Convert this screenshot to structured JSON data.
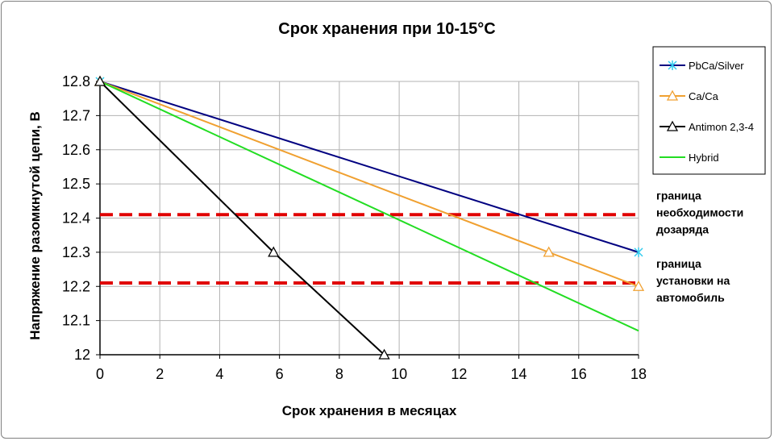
{
  "chart_data": {
    "type": "line",
    "title": "Срок хранения при 10-15°С",
    "xlabel": "Срок хранения в месяцах",
    "ylabel": "Напряжение разомкнутой цепи, В",
    "xlim": [
      0,
      18
    ],
    "ylim": [
      12,
      12.8
    ],
    "x_ticks": [
      "0",
      "2",
      "4",
      "6",
      "8",
      "10",
      "12",
      "14",
      "16",
      "18"
    ],
    "y_ticks": [
      "12",
      "12.1",
      "12.2",
      "12.3",
      "12.4",
      "12.5",
      "12.6",
      "12.7",
      "12.8"
    ],
    "grid": true,
    "legend_position": "right",
    "series": [
      {
        "name": "PbCa/Silver",
        "color": "#000080",
        "marker": "star",
        "x": [
          0,
          18
        ],
        "y": [
          12.8,
          12.3
        ]
      },
      {
        "name": "Ca/Ca",
        "color": "#f0a030",
        "marker": "triangle",
        "x": [
          0,
          15,
          18
        ],
        "y": [
          12.8,
          12.3,
          12.2
        ]
      },
      {
        "name": "Antimon 2,3-4",
        "color": "#000000",
        "marker": "triangle",
        "x": [
          0,
          5.8,
          9.5
        ],
        "y": [
          12.8,
          12.3,
          12.0
        ]
      },
      {
        "name": "Hybrid",
        "color": "#22dd22",
        "marker": "none",
        "x": [
          0,
          18
        ],
        "y": [
          12.8,
          12.07
        ]
      }
    ],
    "reference_lines": [
      {
        "y": 12.41,
        "color": "#e00000",
        "style": "dashed",
        "label_lines": [
          "граница",
          "необходимости",
          "дозаряда"
        ]
      },
      {
        "y": 12.21,
        "color": "#e00000",
        "style": "dashed",
        "label_lines": [
          "граница",
          "установки на",
          "автомобиль"
        ]
      }
    ]
  }
}
